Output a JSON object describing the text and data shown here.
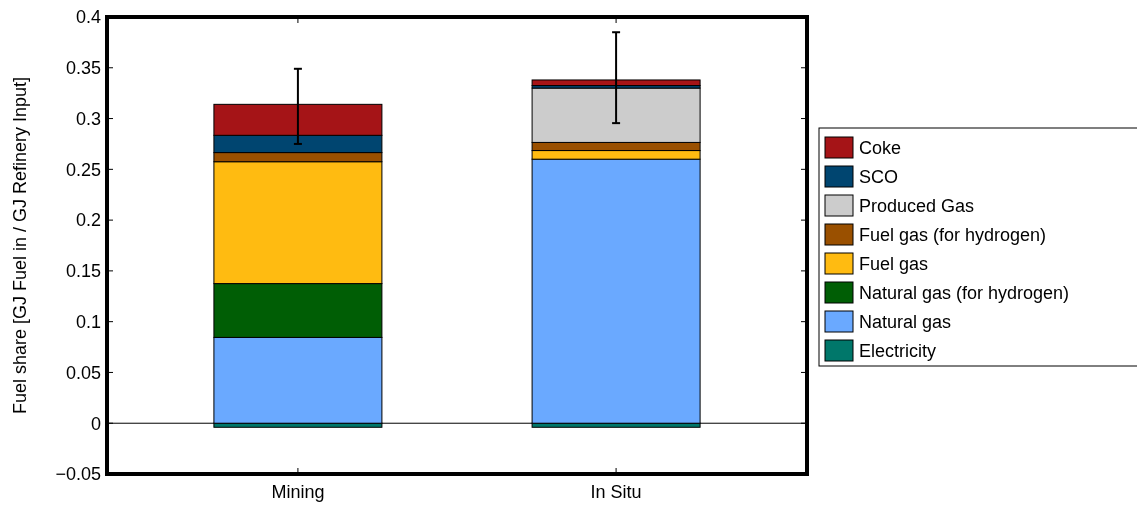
{
  "chart_data": {
    "type": "bar",
    "stacked": true,
    "ylabel": "Fuel share [GJ Fuel in / GJ Refinery Input]",
    "categories": [
      "Mining",
      "In Situ"
    ],
    "series": [
      {
        "name": "Electricity",
        "color": "#00776a",
        "values": [
          -0.004,
          -0.004
        ]
      },
      {
        "name": "Natural gas",
        "color": "#6aa9ff",
        "values": [
          0.0845,
          0.26
        ]
      },
      {
        "name": "Natural gas (for hydrogen)",
        "color": "#005e05",
        "values": [
          0.053,
          0
        ]
      },
      {
        "name": "Fuel gas",
        "color": "#ffbb11",
        "values": [
          0.12,
          0.0085
        ]
      },
      {
        "name": "Fuel gas (for hydrogen)",
        "color": "#9a5000",
        "values": [
          0.009,
          0.008
        ]
      },
      {
        "name": "Produced Gas",
        "color": "#cccccc",
        "values": [
          0,
          0.0535
        ]
      },
      {
        "name": "SCO",
        "color": "#004570",
        "values": [
          0.017,
          0.0025
        ]
      },
      {
        "name": "Coke",
        "color": "#a51417",
        "values": [
          0.0305,
          0.0055
        ],
        "errors": [
          [
            0.275,
            0.349
          ],
          [
            0.2955,
            0.385
          ]
        ]
      }
    ],
    "ylim": [
      -0.05,
      0.4
    ],
    "yticks": [
      {
        "value": -0.05,
        "label": "−0.05"
      },
      0,
      0.05,
      0.1,
      0.15,
      0.2,
      0.25,
      0.3,
      0.35,
      0.4
    ],
    "ref_lines": [
      {
        "axis": "y",
        "value": 0,
        "color": "#000000"
      }
    ],
    "legend": "right"
  }
}
